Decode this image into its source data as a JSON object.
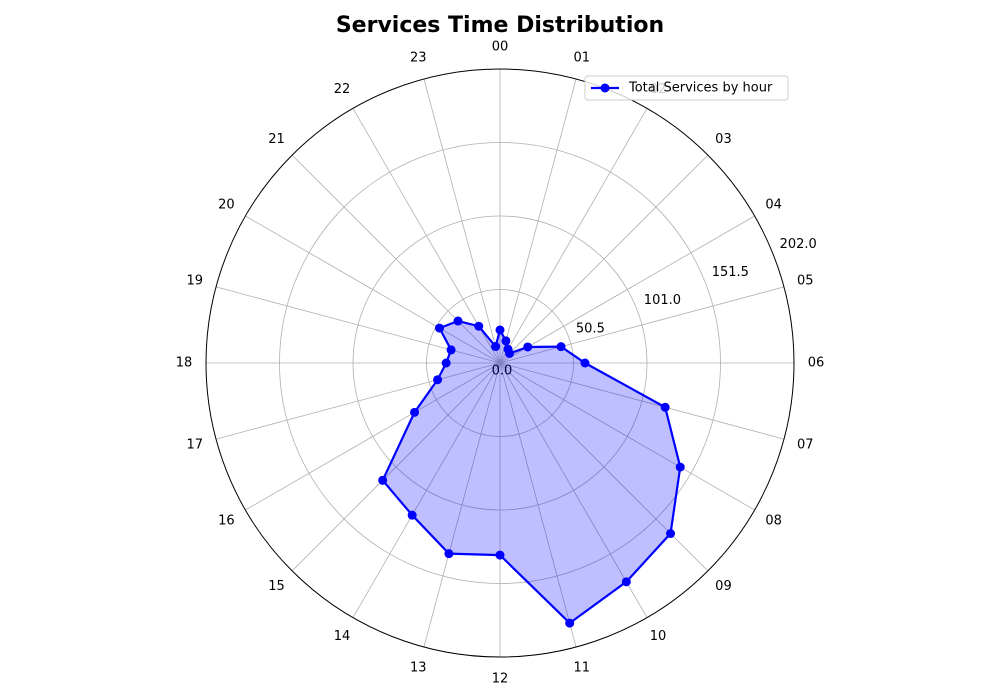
{
  "chart_data": {
    "type": "radar",
    "title": "Services Time Distribution",
    "categories": [
      "00",
      "01",
      "02",
      "03",
      "04",
      "05",
      "06",
      "07",
      "08",
      "09",
      "10",
      "11",
      "12",
      "13",
      "14",
      "15",
      "16",
      "17",
      "18",
      "19",
      "20",
      "21",
      "22",
      "23"
    ],
    "series": [
      {
        "name": "Total Services by hour",
        "color": "#0000ff",
        "values": [
          22.7,
          15.7,
          11,
          9.3,
          22,
          43.4,
          58.4,
          117.5,
          143,
          165.7,
          173.6,
          185,
          132,
          135.6,
          120.7,
          114,
          67.8,
          44.4,
          37,
          34.8,
          48,
          40.8,
          29.2,
          11.7
        ]
      }
    ],
    "ylim": [
      0,
      202
    ],
    "yticks": [
      {
        "value": 0,
        "label": "0.0"
      },
      50.5,
      {
        "value": 101,
        "label": "101.0"
      },
      151.5,
      {
        "value": 202,
        "label": "202.0"
      }
    ],
    "grid": true,
    "legend": "upper right"
  }
}
